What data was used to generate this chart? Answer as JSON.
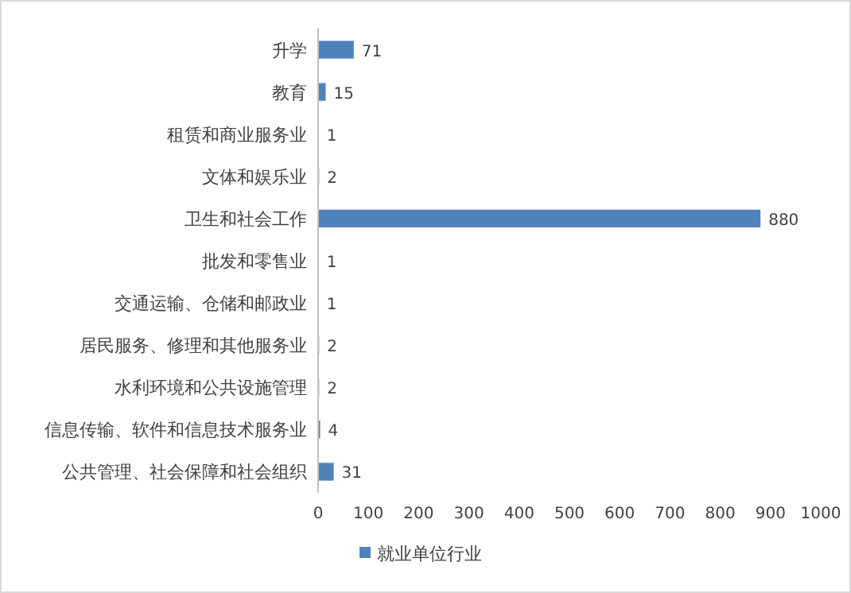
{
  "chart_data": {
    "type": "bar",
    "orientation": "horizontal",
    "categories": [
      "升学",
      "教育",
      "租赁和商业服务业",
      "文体和娱乐业",
      "卫生和社会工作",
      "批发和零售业",
      "交通运输、仓储和邮政业",
      "居民服务、修理和其他服务业",
      "水利环境和公共设施管理",
      "信息传输、软件和信息技术服务业",
      "公共管理、社会保障和社会组织"
    ],
    "series": [
      {
        "name": "就业单位行业",
        "color": "#4f81bd",
        "values": [
          71,
          15,
          1,
          2,
          880,
          1,
          1,
          2,
          2,
          4,
          31
        ]
      }
    ],
    "xlim": [
      0,
      1000
    ],
    "xticks": [
      0,
      100,
      200,
      300,
      400,
      500,
      600,
      700,
      800,
      900,
      1000
    ],
    "data_labels": true,
    "grid": false,
    "legend": "bottom"
  }
}
